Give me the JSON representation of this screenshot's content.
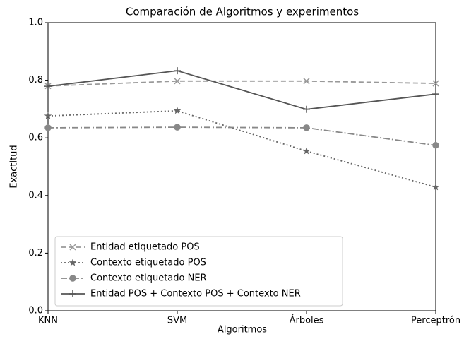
{
  "chart_data": {
    "type": "line",
    "title": "Comparación de Algoritmos y experimentos",
    "x_label": "Algoritmos",
    "y_label": "Exactitud",
    "categories": [
      "KNN",
      "SVM",
      "Árboles",
      "Perceptrón"
    ],
    "series": [
      {
        "name": "Entidad etiquetado POS",
        "color": "#999999",
        "linestyle": "dashed",
        "marker": "x",
        "values": [
          0.78,
          0.797,
          0.797,
          0.789
        ]
      },
      {
        "name": "Contexto etiquetado POS",
        "color": "#666666",
        "linestyle": "dotted",
        "marker": "star",
        "values": [
          0.676,
          0.694,
          0.554,
          0.429
        ]
      },
      {
        "name": "Contexto etiquetado NER",
        "color": "#888888",
        "linestyle": "dashdot",
        "marker": "circle",
        "values": [
          0.635,
          0.637,
          0.635,
          0.574
        ]
      },
      {
        "name": "Entidad POS + Contexto POS + Contexto NER",
        "color": "#555555",
        "linestyle": "solid",
        "marker": "plus",
        "values": [
          0.779,
          0.833,
          0.699,
          0.752
        ]
      }
    ],
    "ylim": [
      0,
      1
    ],
    "yticks": [
      {
        "value": 0,
        "label": "0.0"
      },
      0.2,
      0.4,
      0.6,
      0.8,
      {
        "value": 1,
        "label": "1.0"
      }
    ],
    "legend": "lower left"
  }
}
